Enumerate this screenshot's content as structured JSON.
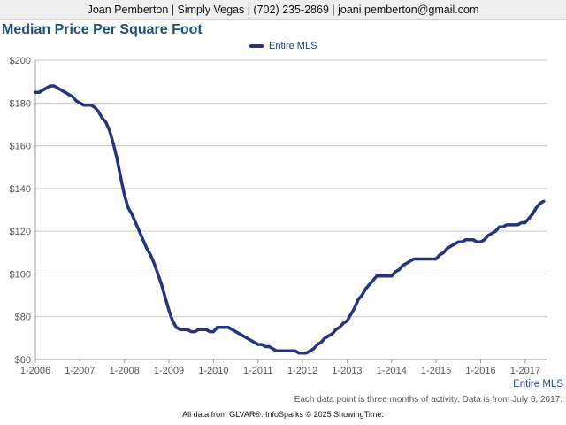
{
  "header": {
    "contact": "Joan Pemberton | Simply Vegas | (702) 235-2869 | joani.pemberton@gmail.com"
  },
  "chart_data": {
    "type": "line",
    "title": "Median Price Per Square Foot",
    "legend": "top",
    "grid": true,
    "xlabel": "",
    "ylabel": "",
    "x_ticks": [
      "1-2006",
      "1-2007",
      "1-2008",
      "1-2009",
      "1-2010",
      "1-2011",
      "1-2012",
      "1-2013",
      "1-2014",
      "1-2015",
      "1-2016",
      "1-2017"
    ],
    "y_ticks": [
      "$60",
      "$80",
      "$100",
      "$120",
      "$140",
      "$160",
      "$180",
      "$200"
    ],
    "ylim": [
      60,
      200
    ],
    "xlim": [
      "2006-01",
      "2017-07"
    ],
    "series": [
      {
        "name": "Entire MLS",
        "color": "#27337c",
        "x": [
          "2006-01",
          "2006-02",
          "2006-03",
          "2006-04",
          "2006-05",
          "2006-06",
          "2006-07",
          "2006-08",
          "2006-09",
          "2006-10",
          "2006-11",
          "2006-12",
          "2007-01",
          "2007-02",
          "2007-03",
          "2007-04",
          "2007-05",
          "2007-06",
          "2007-07",
          "2007-08",
          "2007-09",
          "2007-10",
          "2007-11",
          "2007-12",
          "2008-01",
          "2008-02",
          "2008-03",
          "2008-04",
          "2008-05",
          "2008-06",
          "2008-07",
          "2008-08",
          "2008-09",
          "2008-10",
          "2008-11",
          "2008-12",
          "2009-01",
          "2009-02",
          "2009-03",
          "2009-04",
          "2009-05",
          "2009-06",
          "2009-07",
          "2009-08",
          "2009-09",
          "2009-10",
          "2009-11",
          "2009-12",
          "2010-01",
          "2010-02",
          "2010-03",
          "2010-04",
          "2010-05",
          "2010-06",
          "2010-07",
          "2010-08",
          "2010-09",
          "2010-10",
          "2010-11",
          "2010-12",
          "2011-01",
          "2011-02",
          "2011-03",
          "2011-04",
          "2011-05",
          "2011-06",
          "2011-07",
          "2011-08",
          "2011-09",
          "2011-10",
          "2011-11",
          "2011-12",
          "2012-01",
          "2012-02",
          "2012-03",
          "2012-04",
          "2012-05",
          "2012-06",
          "2012-07",
          "2012-08",
          "2012-09",
          "2012-10",
          "2012-11",
          "2012-12",
          "2013-01",
          "2013-02",
          "2013-03",
          "2013-04",
          "2013-05",
          "2013-06",
          "2013-07",
          "2013-08",
          "2013-09",
          "2013-10",
          "2013-11",
          "2013-12",
          "2014-01",
          "2014-02",
          "2014-03",
          "2014-04",
          "2014-05",
          "2014-06",
          "2014-07",
          "2014-08",
          "2014-09",
          "2014-10",
          "2014-11",
          "2014-12",
          "2015-01",
          "2015-02",
          "2015-03",
          "2015-04",
          "2015-05",
          "2015-06",
          "2015-07",
          "2015-08",
          "2015-09",
          "2015-10",
          "2015-11",
          "2015-12",
          "2016-01",
          "2016-02",
          "2016-03",
          "2016-04",
          "2016-05",
          "2016-06",
          "2016-07",
          "2016-08",
          "2016-09",
          "2016-10",
          "2016-11",
          "2016-12",
          "2017-01",
          "2017-02",
          "2017-03",
          "2017-04",
          "2017-05",
          "2017-06"
        ],
        "values": [
          185,
          185,
          186,
          187,
          188,
          188,
          187,
          186,
          185,
          184,
          183,
          181,
          180,
          179,
          179,
          179,
          178,
          176,
          173,
          171,
          167,
          161,
          154,
          145,
          137,
          131,
          128,
          124,
          120,
          116,
          112,
          109,
          105,
          100,
          95,
          89,
          83,
          78,
          75,
          74,
          74,
          74,
          73,
          73,
          74,
          74,
          74,
          73,
          73,
          75,
          75,
          75,
          75,
          74,
          73,
          72,
          71,
          70,
          69,
          68,
          67,
          67,
          66,
          66,
          65,
          64,
          64,
          64,
          64,
          64,
          64,
          63,
          63,
          63,
          64,
          65,
          67,
          68,
          70,
          71,
          72,
          74,
          75,
          77,
          78,
          81,
          84,
          88,
          90,
          93,
          95,
          97,
          99,
          99,
          99,
          99,
          99,
          101,
          102,
          104,
          105,
          106,
          107,
          107,
          107,
          107,
          107,
          107,
          107,
          109,
          110,
          112,
          113,
          114,
          115,
          115,
          116,
          116,
          116,
          115,
          115,
          116,
          118,
          119,
          120,
          122,
          122,
          123,
          123,
          123,
          123,
          124,
          124,
          126,
          128,
          131,
          133,
          134
        ]
      }
    ]
  },
  "notes": {
    "series_tag": "Entire MLS",
    "footnote": "Each data point is three months of activity. Data is from July 6, 2017.",
    "source": "All data from GLVAR®. InfoSparks © 2025 ShowingTime."
  }
}
